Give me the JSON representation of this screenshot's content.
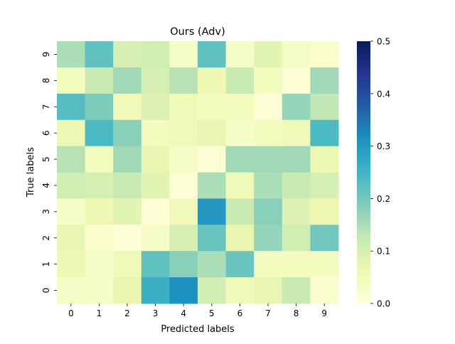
{
  "chart_data": {
    "type": "heatmap",
    "title": "Ours (Adv)",
    "xlabel": "Predicted labels",
    "ylabel": "True labels",
    "x_categories": [
      "0",
      "1",
      "2",
      "3",
      "4",
      "5",
      "6",
      "7",
      "8",
      "9"
    ],
    "y_categories": [
      "9",
      "8",
      "7",
      "6",
      "5",
      "4",
      "3",
      "2",
      "1",
      "0"
    ],
    "colormap": "YlGnBu",
    "vmin": 0.0,
    "vmax": 0.5,
    "colorbar_ticks": [
      "0.0",
      "0.1",
      "0.2",
      "0.3",
      "0.4",
      "0.5"
    ],
    "values": [
      [
        0.15,
        0.22,
        0.1,
        0.11,
        0.03,
        0.22,
        0.03,
        0.08,
        0.03,
        0.02
      ],
      [
        0.04,
        0.12,
        0.16,
        0.1,
        0.14,
        0.06,
        0.12,
        0.04,
        0.01,
        0.16
      ],
      [
        0.23,
        0.19,
        0.05,
        0.09,
        0.05,
        0.04,
        0.04,
        0.01,
        0.17,
        0.13
      ],
      [
        0.06,
        0.24,
        0.18,
        0.04,
        0.05,
        0.07,
        0.03,
        0.04,
        0.05,
        0.24
      ],
      [
        0.14,
        0.04,
        0.16,
        0.07,
        0.03,
        0.01,
        0.16,
        0.16,
        0.16,
        0.06
      ],
      [
        0.11,
        0.1,
        0.12,
        0.08,
        0.01,
        0.15,
        0.05,
        0.15,
        0.12,
        0.1
      ],
      [
        0.03,
        0.06,
        0.08,
        0.01,
        0.05,
        0.3,
        0.12,
        0.18,
        0.09,
        0.06
      ],
      [
        0.07,
        0.02,
        0.01,
        0.03,
        0.1,
        0.21,
        0.07,
        0.17,
        0.11,
        0.2
      ],
      [
        0.06,
        0.03,
        0.05,
        0.22,
        0.18,
        0.15,
        0.21,
        0.04,
        0.04,
        0.04
      ],
      [
        0.03,
        0.03,
        0.07,
        0.26,
        0.31,
        0.11,
        0.05,
        0.07,
        0.12,
        0.02
      ]
    ]
  }
}
